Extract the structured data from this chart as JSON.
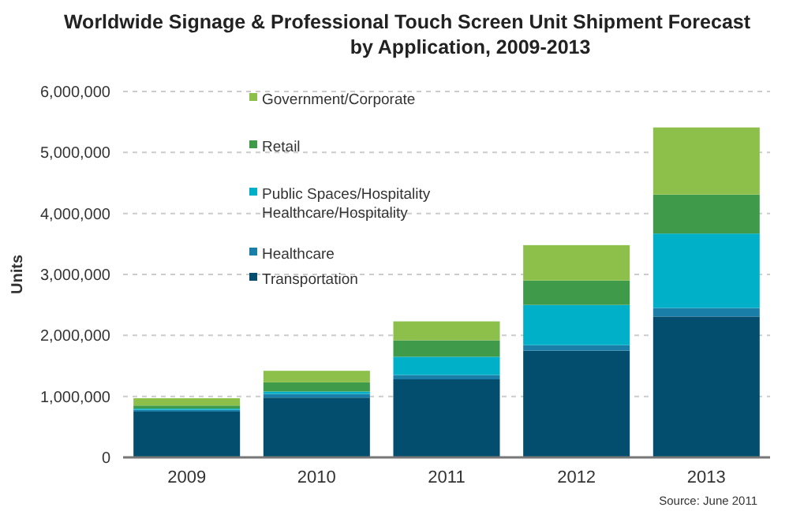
{
  "chart_data": {
    "type": "bar",
    "stacked": true,
    "title": "Worldwide Signage & Professional Touch Screen Unit Shipment Forecast\nby Application, 2009-2013",
    "ylabel": "Units",
    "categories": [
      "2009",
      "2010",
      "2011",
      "2012",
      "2013"
    ],
    "series": [
      {
        "name": "Transportation",
        "color": "#034e6e",
        "values": [
          750000,
          980000,
          1280000,
          1750000,
          2310000
        ]
      },
      {
        "name": "Healthcare",
        "color": "#1a7fa8",
        "values": [
          30000,
          60000,
          70000,
          90000,
          140000
        ]
      },
      {
        "name": "Public Spaces/Hospitality",
        "color": "#00b0c8",
        "values": [
          20000,
          40000,
          300000,
          660000,
          1220000
        ]
      },
      {
        "name": "Retail",
        "color": "#3f9a4a",
        "values": [
          50000,
          150000,
          270000,
          400000,
          640000
        ]
      },
      {
        "name": "Government/Corporate",
        "color": "#8cc04a",
        "values": [
          120000,
          190000,
          310000,
          580000,
          1100000
        ]
      }
    ],
    "ylim": [
      0,
      6000000
    ],
    "yticks": [
      {
        "value": 0,
        "label": "0"
      },
      {
        "value": 1000000,
        "label": "1,000,000"
      },
      {
        "value": 2000000,
        "label": "2,000,000"
      },
      {
        "value": 3000000,
        "label": "3,000,000"
      },
      {
        "value": 4000000,
        "label": "4,000,000"
      },
      {
        "value": 5000000,
        "label": "5,000,000"
      },
      {
        "value": 6000000,
        "label": "6,000,000"
      }
    ],
    "grid": "y",
    "legend": "top left",
    "annotations": [
      "Healthcare/Hospitality",
      "Source: June 2011"
    ]
  }
}
